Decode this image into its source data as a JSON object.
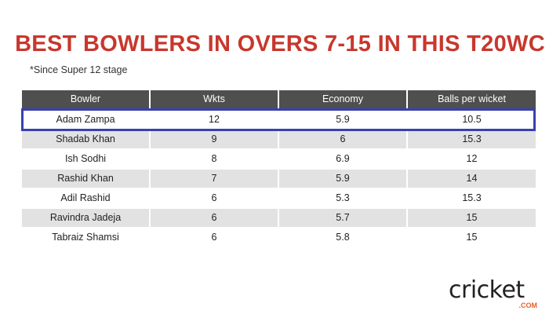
{
  "title": "BEST BOWLERS IN OVERS 7-15 IN THIS T20WC",
  "subtitle": "*Since Super 12 stage",
  "table": {
    "headers": [
      "Bowler",
      "Wkts",
      "Economy",
      "Balls per wicket"
    ],
    "rows": [
      [
        "Adam Zampa",
        "12",
        "5.9",
        "10.5"
      ],
      [
        "Shadab Khan",
        "9",
        "6",
        "15.3"
      ],
      [
        "Ish Sodhi",
        "8",
        "6.9",
        "12"
      ],
      [
        "Rashid Khan",
        "7",
        "5.9",
        "14"
      ],
      [
        "Adil Rashid",
        "6",
        "5.3",
        "15.3"
      ],
      [
        "Ravindra Jadeja",
        "6",
        "5.7",
        "15"
      ],
      [
        "Tabraiz Shamsi",
        "6",
        "5.8",
        "15"
      ]
    ],
    "highlight_row": 0
  },
  "logo": {
    "name": "cricket",
    "domain": ".COM"
  }
}
